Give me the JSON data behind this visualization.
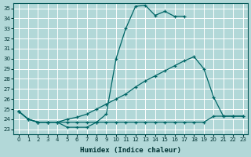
{
  "title": "",
  "xlabel": "Humidex (Indice chaleur)",
  "ylabel": "",
  "bg_color": "#b2d8d8",
  "grid_color": "#ffffff",
  "line_color": "#006666",
  "xlim": [
    -0.5,
    23.5
  ],
  "ylim": [
    22.5,
    35.5
  ],
  "yticks": [
    23,
    24,
    25,
    26,
    27,
    28,
    29,
    30,
    31,
    32,
    33,
    34,
    35
  ],
  "xticks": [
    0,
    1,
    2,
    3,
    4,
    5,
    6,
    7,
    8,
    9,
    10,
    11,
    12,
    13,
    14,
    15,
    16,
    17,
    18,
    19,
    20,
    21,
    22,
    23
  ],
  "line1_x": [
    0,
    1,
    2,
    3,
    4,
    5,
    6,
    7,
    8,
    9,
    10,
    11,
    12,
    13,
    14,
    15,
    16,
    17
  ],
  "line1_y": [
    24.8,
    24.0,
    23.7,
    23.7,
    23.7,
    23.2,
    23.2,
    23.2,
    23.7,
    24.5,
    30.0,
    33.0,
    35.2,
    35.3,
    34.3,
    34.7,
    34.2,
    34.2
  ],
  "line2_x": [
    0,
    1,
    2,
    3,
    4,
    5,
    6,
    7,
    8,
    9,
    10,
    11,
    12,
    13,
    14,
    15,
    16,
    17,
    18,
    19,
    20,
    21,
    22,
    23
  ],
  "line2_y": [
    24.8,
    24.0,
    23.7,
    23.7,
    23.7,
    24.0,
    24.2,
    24.5,
    25.0,
    25.5,
    26.0,
    26.5,
    27.2,
    27.8,
    28.3,
    28.8,
    29.3,
    29.8,
    30.2,
    29.0,
    26.2,
    24.3,
    24.3,
    24.3
  ],
  "line3_x": [
    0,
    1,
    2,
    3,
    4,
    5,
    6,
    7,
    8,
    9,
    10,
    11,
    12,
    13,
    14,
    15,
    16,
    17,
    18,
    19,
    20,
    21,
    22,
    23
  ],
  "line3_y": [
    24.8,
    24.0,
    23.7,
    23.7,
    23.7,
    23.7,
    23.7,
    23.7,
    23.7,
    23.7,
    23.7,
    23.7,
    23.7,
    23.7,
    23.7,
    23.7,
    23.7,
    23.7,
    23.7,
    23.7,
    24.3,
    24.3,
    24.3,
    24.3
  ]
}
